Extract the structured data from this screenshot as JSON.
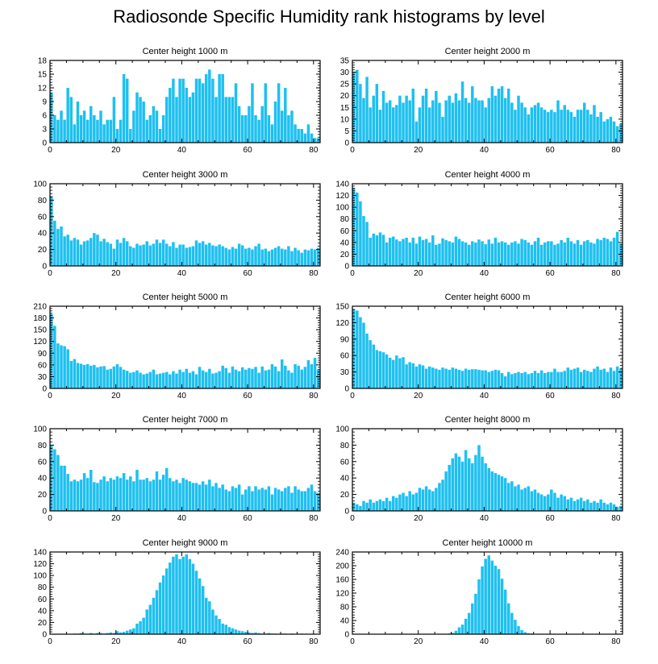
{
  "title": "Radiosonde Specific Humidity rank histograms by level",
  "bar_color": "#1ec0f0",
  "chart_data": [
    {
      "type": "bar",
      "title": "Center height 1000 m",
      "xlim": [
        0,
        82
      ],
      "ylim": [
        0,
        18
      ],
      "xticks": [
        0,
        20,
        40,
        60,
        80
      ],
      "yticks": [
        0,
        3,
        6,
        9,
        12,
        15,
        18
      ],
      "values": [
        11,
        6,
        5,
        7,
        5,
        12,
        10,
        4,
        9,
        6,
        7,
        5,
        8,
        6,
        5,
        7,
        4,
        5,
        5,
        10,
        3,
        5,
        15,
        14,
        3,
        7,
        11,
        10,
        9,
        5,
        6,
        8,
        7,
        3,
        6,
        10,
        12,
        14,
        10,
        14,
        14,
        12,
        10,
        11,
        14,
        14,
        13,
        15,
        16,
        14,
        10,
        15,
        15,
        10,
        10,
        10,
        13,
        8,
        6,
        6,
        8,
        13,
        6,
        5,
        8,
        13,
        6,
        4,
        9,
        13,
        7,
        12,
        6,
        7,
        4,
        3,
        3,
        2,
        4,
        2,
        1,
        1
      ],
      "xlabel": "",
      "ylabel": ""
    },
    {
      "type": "bar",
      "title": "Center height 2000 m",
      "xlim": [
        0,
        82
      ],
      "ylim": [
        0,
        35
      ],
      "xticks": [
        0,
        20,
        40,
        60,
        80
      ],
      "yticks": [
        0,
        5,
        10,
        15,
        20,
        25,
        30,
        35
      ],
      "values": [
        30,
        31,
        25,
        19,
        28,
        15,
        20,
        25,
        14,
        22,
        17,
        18,
        15,
        16,
        20,
        17,
        20,
        18,
        23,
        9,
        15,
        20,
        23,
        15,
        18,
        22,
        17,
        11,
        18,
        20,
        17,
        21,
        18,
        26,
        19,
        17,
        24,
        19,
        18,
        18,
        15,
        19,
        24,
        20,
        23,
        24,
        19,
        23,
        17,
        14,
        20,
        17,
        15,
        12,
        15,
        16,
        17,
        15,
        14,
        13,
        14,
        13,
        18,
        14,
        16,
        14,
        13,
        11,
        14,
        14,
        17,
        14,
        12,
        16,
        11,
        13,
        9,
        10,
        11,
        9,
        7,
        8
      ],
      "xlabel": "",
      "ylabel": ""
    },
    {
      "type": "bar",
      "title": "Center height 3000 m",
      "xlim": [
        0,
        82
      ],
      "ylim": [
        0,
        100
      ],
      "xticks": [
        0,
        20,
        40,
        60,
        80
      ],
      "yticks": [
        0,
        20,
        40,
        60,
        80,
        100
      ],
      "values": [
        85,
        55,
        45,
        48,
        36,
        38,
        31,
        34,
        32,
        26,
        30,
        31,
        34,
        40,
        38,
        30,
        33,
        29,
        27,
        21,
        32,
        28,
        34,
        30,
        24,
        22,
        27,
        25,
        26,
        30,
        25,
        27,
        32,
        28,
        32,
        27,
        24,
        29,
        22,
        26,
        26,
        22,
        23,
        24,
        31,
        28,
        30,
        26,
        28,
        25,
        24,
        26,
        24,
        22,
        20,
        23,
        21,
        27,
        25,
        21,
        22,
        20,
        24,
        27,
        20,
        21,
        18,
        20,
        22,
        24,
        21,
        20,
        24,
        18,
        22,
        19,
        16,
        20,
        19,
        21,
        20,
        22
      ],
      "xlabel": "",
      "ylabel": ""
    },
    {
      "type": "bar",
      "title": "Center height 4000 m",
      "xlim": [
        0,
        82
      ],
      "ylim": [
        0,
        140
      ],
      "xticks": [
        0,
        20,
        40,
        60,
        80
      ],
      "yticks": [
        0,
        20,
        40,
        60,
        80,
        100,
        120,
        140
      ],
      "values": [
        133,
        125,
        110,
        85,
        75,
        48,
        55,
        52,
        57,
        53,
        40,
        48,
        50,
        45,
        42,
        46,
        48,
        40,
        48,
        38,
        50,
        44,
        46,
        40,
        52,
        36,
        38,
        47,
        44,
        42,
        40,
        50,
        46,
        42,
        40,
        36,
        42,
        40,
        45,
        42,
        37,
        45,
        38,
        48,
        40,
        42,
        40,
        36,
        40,
        42,
        38,
        46,
        44,
        40,
        36,
        42,
        48,
        36,
        40,
        42,
        42,
        36,
        38,
        44,
        40,
        48,
        42,
        38,
        44,
        36,
        42,
        44,
        40,
        38,
        46,
        44,
        48,
        46,
        42,
        48,
        58,
        38
      ],
      "xlabel": "",
      "ylabel": ""
    },
    {
      "type": "bar",
      "title": "Center height 5000 m",
      "xlim": [
        0,
        82
      ],
      "ylim": [
        0,
        210
      ],
      "xticks": [
        0,
        20,
        40,
        60,
        80
      ],
      "yticks": [
        0,
        30,
        60,
        90,
        120,
        150,
        180,
        210
      ],
      "values": [
        190,
        160,
        115,
        110,
        108,
        100,
        70,
        75,
        65,
        63,
        60,
        62,
        58,
        60,
        54,
        56,
        57,
        48,
        50,
        56,
        62,
        55,
        48,
        45,
        40,
        42,
        46,
        40,
        36,
        38,
        42,
        48,
        36,
        38,
        40,
        42,
        36,
        44,
        38,
        48,
        42,
        50,
        40,
        44,
        36,
        55,
        46,
        42,
        50,
        38,
        40,
        44,
        58,
        52,
        40,
        56,
        48,
        44,
        54,
        48,
        52,
        50,
        55,
        40,
        56,
        46,
        48,
        62,
        56,
        44,
        74,
        58,
        46,
        40,
        62,
        58,
        48,
        55,
        72,
        62,
        78,
        48
      ],
      "xlabel": "",
      "ylabel": ""
    },
    {
      "type": "bar",
      "title": "Center height 6000 m",
      "xlim": [
        0,
        82
      ],
      "ylim": [
        0,
        150
      ],
      "xticks": [
        0,
        20,
        40,
        60,
        80
      ],
      "yticks": [
        0,
        30,
        60,
        90,
        120,
        150
      ],
      "values": [
        145,
        142,
        130,
        120,
        100,
        88,
        80,
        70,
        68,
        66,
        62,
        56,
        52,
        60,
        55,
        57,
        44,
        48,
        46,
        40,
        44,
        42,
        36,
        40,
        38,
        36,
        34,
        38,
        36,
        34,
        38,
        36,
        34,
        32,
        36,
        34,
        35,
        35,
        34,
        33,
        33,
        30,
        32,
        34,
        33,
        28,
        22,
        30,
        26,
        28,
        30,
        28,
        30,
        26,
        28,
        32,
        28,
        33,
        28,
        30,
        30,
        36,
        30,
        30,
        32,
        38,
        34,
        36,
        38,
        30,
        34,
        32,
        30,
        36,
        40,
        34,
        36,
        30,
        38,
        32,
        40,
        36
      ],
      "xlabel": "",
      "ylabel": ""
    },
    {
      "type": "bar",
      "title": "Center height 7000 m",
      "xlim": [
        0,
        82
      ],
      "ylim": [
        0,
        100
      ],
      "xticks": [
        0,
        20,
        40,
        60,
        80
      ],
      "yticks": [
        0,
        20,
        40,
        60,
        80,
        100
      ],
      "values": [
        80,
        75,
        68,
        55,
        55,
        45,
        36,
        38,
        36,
        38,
        46,
        40,
        50,
        35,
        34,
        38,
        42,
        36,
        40,
        38,
        42,
        40,
        46,
        38,
        42,
        36,
        50,
        38,
        38,
        40,
        36,
        38,
        48,
        38,
        44,
        52,
        40,
        36,
        38,
        34,
        40,
        38,
        36,
        34,
        34,
        32,
        36,
        32,
        38,
        30,
        34,
        28,
        32,
        26,
        24,
        30,
        28,
        32,
        20,
        26,
        30,
        24,
        30,
        26,
        28,
        26,
        30,
        20,
        28,
        26,
        24,
        28,
        30,
        22,
        30,
        26,
        24,
        24,
        28,
        32,
        24,
        22
      ],
      "xlabel": "",
      "ylabel": ""
    },
    {
      "type": "bar",
      "title": "Center height 8000 m",
      "xlim": [
        0,
        82
      ],
      "ylim": [
        0,
        100
      ],
      "xticks": [
        0,
        20,
        40,
        60,
        80
      ],
      "yticks": [
        0,
        20,
        40,
        60,
        80,
        100
      ],
      "values": [
        10,
        8,
        6,
        12,
        10,
        14,
        10,
        12,
        14,
        12,
        16,
        12,
        18,
        16,
        20,
        22,
        18,
        24,
        20,
        22,
        28,
        26,
        30,
        26,
        24,
        28,
        34,
        38,
        48,
        56,
        64,
        70,
        66,
        60,
        74,
        64,
        58,
        68,
        80,
        66,
        58,
        52,
        48,
        46,
        44,
        42,
        40,
        34,
        36,
        30,
        32,
        26,
        28,
        30,
        24,
        26,
        22,
        20,
        18,
        20,
        26,
        22,
        16,
        20,
        18,
        14,
        16,
        12,
        14,
        16,
        12,
        14,
        10,
        12,
        10,
        14,
        10,
        8,
        10,
        8,
        5,
        6
      ],
      "xlabel": "",
      "ylabel": ""
    },
    {
      "type": "bar",
      "title": "Center height 9000 m",
      "xlim": [
        0,
        82
      ],
      "ylim": [
        0,
        140
      ],
      "xticks": [
        0,
        20,
        40,
        60,
        80
      ],
      "yticks": [
        0,
        20,
        40,
        60,
        80,
        100,
        120,
        140
      ],
      "values": [
        0,
        0,
        0,
        0,
        0,
        0,
        0,
        1,
        1,
        2,
        1,
        1,
        2,
        1,
        2,
        2,
        1,
        2,
        3,
        2,
        5,
        3,
        4,
        6,
        8,
        10,
        18,
        22,
        28,
        42,
        50,
        62,
        75,
        88,
        100,
        112,
        122,
        132,
        136,
        128,
        132,
        136,
        128,
        120,
        108,
        95,
        82,
        62,
        56,
        42,
        32,
        26,
        18,
        16,
        12,
        10,
        8,
        6,
        5,
        4,
        3,
        2,
        3,
        2,
        1,
        1,
        2,
        1,
        1,
        0,
        1,
        1,
        0,
        1,
        0,
        0,
        1,
        0,
        0,
        0,
        0,
        0
      ],
      "xlabel": "",
      "ylabel": ""
    },
    {
      "type": "bar",
      "title": "Center height 10000 m",
      "xlim": [
        0,
        82
      ],
      "ylim": [
        0,
        240
      ],
      "xticks": [
        0,
        20,
        40,
        60,
        80
      ],
      "yticks": [
        0,
        40,
        80,
        120,
        160,
        200,
        240
      ],
      "values": [
        0,
        0,
        0,
        0,
        0,
        0,
        0,
        0,
        0,
        0,
        0,
        0,
        0,
        0,
        0,
        0,
        0,
        0,
        0,
        0,
        0,
        0,
        0,
        0,
        0,
        0,
        0,
        0,
        1,
        2,
        4,
        10,
        20,
        28,
        45,
        62,
        90,
        118,
        160,
        198,
        220,
        230,
        215,
        200,
        190,
        162,
        130,
        90,
        62,
        42,
        24,
        12,
        6,
        3,
        2,
        1,
        1,
        0,
        0,
        0,
        0,
        0,
        0,
        0,
        0,
        0,
        0,
        0,
        0,
        0,
        0,
        0,
        0,
        0,
        0,
        0,
        0,
        0,
        0,
        0,
        0,
        0
      ],
      "xlabel": "",
      "ylabel": ""
    }
  ]
}
